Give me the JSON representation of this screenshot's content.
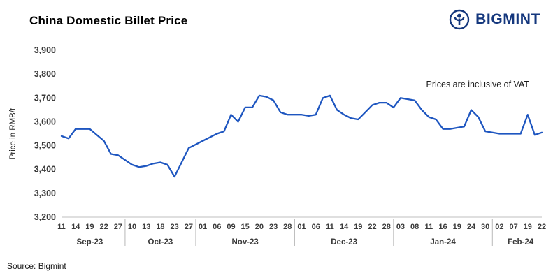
{
  "header": {
    "title": "China Domestic Billet Price",
    "brand": "BIGMINT"
  },
  "footer": {
    "source": "Source: Bigmint"
  },
  "chart_data": {
    "type": "line",
    "title": "China Domestic Billet Price",
    "ylabel": "Price in RMB/t",
    "annotation": "Prices are inclusive of VAT",
    "ylim": [
      3200,
      3900
    ],
    "grid": false,
    "line_color": "#1e56c0",
    "axis_color": "#bfbfbf",
    "yticks": [
      {
        "v": 3900,
        "label": "3,900"
      },
      {
        "v": 3800,
        "label": "3,800"
      },
      {
        "v": 3700,
        "label": "3,700"
      },
      {
        "v": 3600,
        "label": "3,600"
      },
      {
        "v": 3500,
        "label": "3,500"
      },
      {
        "v": 3400,
        "label": "3,400"
      },
      {
        "v": 3300,
        "label": "3,300"
      },
      {
        "v": 3200,
        "label": "3,200"
      }
    ],
    "series": [
      {
        "name": "China Domestic Billet Price (RMB/t)",
        "values": [
          3540,
          3530,
          3570,
          3570,
          3570,
          3545,
          3520,
          3465,
          3460,
          3440,
          3420,
          3410,
          3415,
          3425,
          3430,
          3420,
          3370,
          3430,
          3490,
          3505,
          3520,
          3535,
          3550,
          3560,
          3630,
          3600,
          3660,
          3660,
          3710,
          3705,
          3690,
          3640,
          3630,
          3630,
          3630,
          3625,
          3630,
          3700,
          3710,
          3650,
          3630,
          3615,
          3610,
          3640,
          3670,
          3680,
          3680,
          3660,
          3700,
          3695,
          3690,
          3650,
          3620,
          3610,
          3570,
          3570,
          3575,
          3580,
          3650,
          3620,
          3560,
          3555,
          3550,
          3550,
          3550,
          3550,
          3630,
          3545,
          3555
        ]
      }
    ],
    "xticks": [
      {
        "i": 0,
        "label": "11"
      },
      {
        "i": 2,
        "label": "14"
      },
      {
        "i": 4,
        "label": "19"
      },
      {
        "i": 6,
        "label": "22"
      },
      {
        "i": 8,
        "label": "27"
      },
      {
        "i": 10,
        "label": "10"
      },
      {
        "i": 12,
        "label": "13"
      },
      {
        "i": 14,
        "label": "18"
      },
      {
        "i": 16,
        "label": "23"
      },
      {
        "i": 18,
        "label": "27"
      },
      {
        "i": 20,
        "label": "01"
      },
      {
        "i": 22,
        "label": "06"
      },
      {
        "i": 24,
        "label": "09"
      },
      {
        "i": 26,
        "label": "15"
      },
      {
        "i": 28,
        "label": "20"
      },
      {
        "i": 30,
        "label": "23"
      },
      {
        "i": 32,
        "label": "28"
      },
      {
        "i": 34,
        "label": "01"
      },
      {
        "i": 36,
        "label": "06"
      },
      {
        "i": 38,
        "label": "11"
      },
      {
        "i": 40,
        "label": "14"
      },
      {
        "i": 42,
        "label": "19"
      },
      {
        "i": 44,
        "label": "22"
      },
      {
        "i": 46,
        "label": "28"
      },
      {
        "i": 48,
        "label": "03"
      },
      {
        "i": 50,
        "label": "08"
      },
      {
        "i": 52,
        "label": "11"
      },
      {
        "i": 54,
        "label": "16"
      },
      {
        "i": 56,
        "label": "19"
      },
      {
        "i": 58,
        "label": "24"
      },
      {
        "i": 60,
        "label": "30"
      },
      {
        "i": 62,
        "label": "02"
      },
      {
        "i": 64,
        "label": "07"
      },
      {
        "i": 66,
        "label": "19"
      },
      {
        "i": 68,
        "label": "22"
      }
    ],
    "months": [
      {
        "label": "Sep-23",
        "from": 0,
        "to": 8
      },
      {
        "label": "Oct-23",
        "from": 10,
        "to": 18
      },
      {
        "label": "Nov-23",
        "from": 20,
        "to": 32
      },
      {
        "label": "Dec-23",
        "from": 34,
        "to": 46
      },
      {
        "label": "Jan-24",
        "from": 48,
        "to": 60
      },
      {
        "label": "Feb-24",
        "from": 62,
        "to": 68
      }
    ]
  }
}
